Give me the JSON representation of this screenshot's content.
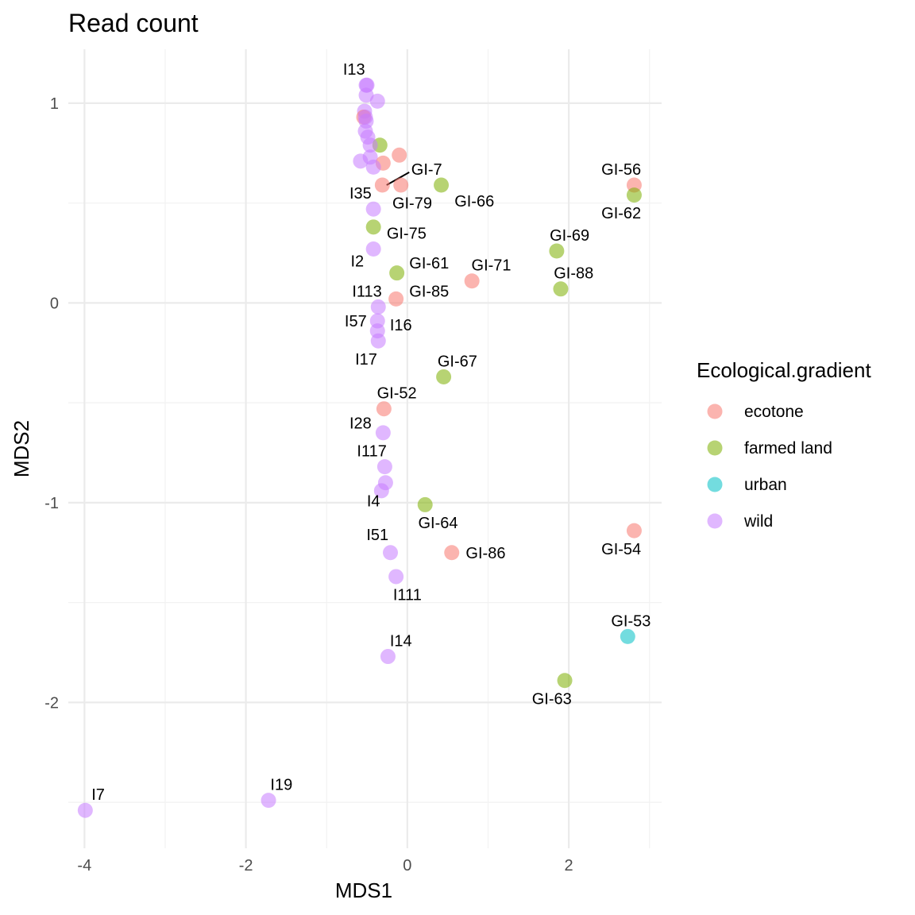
{
  "chart_data": {
    "type": "scatter",
    "title": "Read count",
    "xlabel": "MDS1",
    "ylabel": "MDS2",
    "xlim": [
      -4.2,
      3.15
    ],
    "ylim": [
      -2.73,
      1.27
    ],
    "x_ticks": [
      -4,
      -2,
      0,
      2
    ],
    "x_tick_labels": [
      "-4",
      "-2",
      "0",
      "2"
    ],
    "y_ticks": [
      -2,
      -1,
      0,
      1
    ],
    "y_tick_labels": [
      "-2",
      "-1",
      "0",
      "1"
    ],
    "grid": true,
    "legend": {
      "title": "Ecological.gradient",
      "position": "right",
      "entries": [
        {
          "label": "ecotone",
          "color": "#F8766D"
        },
        {
          "label": "farmed land",
          "color": "#7CAE00"
        },
        {
          "label": "urban",
          "color": "#00BFC4"
        },
        {
          "label": "wild",
          "color": "#C77CFF"
        }
      ]
    },
    "points": [
      {
        "label": "",
        "group": "wild",
        "x": -0.51,
        "y": 1.09
      },
      {
        "label": "",
        "group": "wild",
        "x": -0.51,
        "y": 1.04
      },
      {
        "label": "",
        "group": "wild",
        "x": -0.37,
        "y": 1.01
      },
      {
        "label": "",
        "group": "wild",
        "x": -0.53,
        "y": 0.96
      },
      {
        "label": "",
        "group": "ecotone",
        "x": -0.54,
        "y": 0.93
      },
      {
        "label": "",
        "group": "wild",
        "x": -0.52,
        "y": 0.93
      },
      {
        "label": "",
        "group": "wild",
        "x": -0.51,
        "y": 0.91
      },
      {
        "label": "",
        "group": "wild",
        "x": -0.52,
        "y": 0.86
      },
      {
        "label": "",
        "group": "wild",
        "x": -0.49,
        "y": 0.83
      },
      {
        "label": "",
        "group": "farmed land",
        "x": -0.34,
        "y": 0.79
      },
      {
        "label": "",
        "group": "wild",
        "x": -0.46,
        "y": 0.79
      },
      {
        "label": "",
        "group": "ecotone",
        "x": -0.1,
        "y": 0.74
      },
      {
        "label": "",
        "group": "wild",
        "x": -0.46,
        "y": 0.73
      },
      {
        "label": "",
        "group": "wild",
        "x": -0.58,
        "y": 0.71
      },
      {
        "label": "",
        "group": "ecotone",
        "x": -0.3,
        "y": 0.7
      },
      {
        "label": "",
        "group": "wild",
        "x": -0.42,
        "y": 0.68
      },
      {
        "label": "I13",
        "group": "wild",
        "x": -0.5,
        "y": 1.09,
        "lx": -0.66,
        "ly": 1.17
      },
      {
        "label": "I35",
        "group": "ecotone",
        "x": -0.31,
        "y": 0.59,
        "lx": -0.58,
        "ly": 0.55
      },
      {
        "label": "GI-7",
        "group": "ecotone",
        "x": -0.08,
        "y": 0.59,
        "lx": 0.24,
        "ly": 0.67,
        "leader": true
      },
      {
        "label": "GI-79",
        "group": "wild",
        "x": -0.42,
        "y": 0.47,
        "lx": 0.06,
        "ly": 0.5
      },
      {
        "label": "GI-66",
        "group": "farmed land",
        "x": 0.42,
        "y": 0.59,
        "lx": 0.83,
        "ly": 0.51
      },
      {
        "label": "GI-75",
        "group": "farmed land",
        "x": -0.42,
        "y": 0.38,
        "lx": -0.01,
        "ly": 0.35
      },
      {
        "label": "I2",
        "group": "wild",
        "x": -0.42,
        "y": 0.27,
        "lx": -0.62,
        "ly": 0.21
      },
      {
        "label": "GI-61",
        "group": "farmed land",
        "x": -0.13,
        "y": 0.15,
        "lx": 0.27,
        "ly": 0.2
      },
      {
        "label": "GI-71",
        "group": "ecotone",
        "x": 0.8,
        "y": 0.11,
        "lx": 1.04,
        "ly": 0.19
      },
      {
        "label": "I113",
        "group": "wild",
        "x": -0.36,
        "y": -0.02,
        "lx": -0.5,
        "ly": 0.06
      },
      {
        "label": "GI-85",
        "group": "ecotone",
        "x": -0.14,
        "y": 0.02,
        "lx": 0.27,
        "ly": 0.06
      },
      {
        "label": "I57",
        "group": "wild",
        "x": -0.37,
        "y": -0.09,
        "lx": -0.64,
        "ly": -0.09
      },
      {
        "label": "I16",
        "group": "wild",
        "x": -0.37,
        "y": -0.14,
        "lx": -0.08,
        "ly": -0.11
      },
      {
        "label": "I17",
        "group": "wild",
        "x": -0.36,
        "y": -0.19,
        "lx": -0.51,
        "ly": -0.28
      },
      {
        "label": "GI-67",
        "group": "farmed land",
        "x": 0.45,
        "y": -0.37,
        "lx": 0.62,
        "ly": -0.29
      },
      {
        "label": "GI-52",
        "group": "ecotone",
        "x": -0.29,
        "y": -0.53,
        "lx": -0.13,
        "ly": -0.45
      },
      {
        "label": "I28",
        "group": "wild",
        "x": -0.3,
        "y": -0.65,
        "lx": -0.58,
        "ly": -0.6
      },
      {
        "label": "I117",
        "group": "wild",
        "x": -0.28,
        "y": -0.82,
        "lx": -0.44,
        "ly": -0.74
      },
      {
        "label": "",
        "group": "wild",
        "x": -0.27,
        "y": -0.9
      },
      {
        "label": "I4",
        "group": "wild",
        "x": -0.32,
        "y": -0.94,
        "lx": -0.42,
        "ly": -0.99
      },
      {
        "label": "GI-64",
        "group": "farmed land",
        "x": 0.22,
        "y": -1.01,
        "lx": 0.38,
        "ly": -1.1
      },
      {
        "label": "GI-54",
        "group": "ecotone",
        "x": 2.81,
        "y": -1.14,
        "lx": 2.65,
        "ly": -1.23
      },
      {
        "label": "I51",
        "group": "wild",
        "x": -0.21,
        "y": -1.25,
        "lx": -0.37,
        "ly": -1.16
      },
      {
        "label": "GI-86",
        "group": "ecotone",
        "x": 0.55,
        "y": -1.25,
        "lx": 0.97,
        "ly": -1.25
      },
      {
        "label": "I111",
        "group": "wild",
        "x": -0.14,
        "y": -1.37,
        "lx": 0.0,
        "ly": -1.46
      },
      {
        "label": "GI-53",
        "group": "urban",
        "x": 2.73,
        "y": -1.67,
        "lx": 2.77,
        "ly": -1.59
      },
      {
        "label": "I14",
        "group": "wild",
        "x": -0.24,
        "y": -1.77,
        "lx": -0.08,
        "ly": -1.69
      },
      {
        "label": "GI-63",
        "group": "farmed land",
        "x": 1.95,
        "y": -1.89,
        "lx": 1.79,
        "ly": -1.98
      },
      {
        "label": "GI-56",
        "group": "ecotone",
        "x": 2.81,
        "y": 0.59,
        "lx": 2.65,
        "ly": 0.67
      },
      {
        "label": "GI-62",
        "group": "farmed land",
        "x": 2.81,
        "y": 0.54,
        "lx": 2.65,
        "ly": 0.45
      },
      {
        "label": "GI-69",
        "group": "farmed land",
        "x": 1.85,
        "y": 0.26,
        "lx": 2.01,
        "ly": 0.34
      },
      {
        "label": "GI-88",
        "group": "farmed land",
        "x": 1.9,
        "y": 0.07,
        "lx": 2.06,
        "ly": 0.15
      },
      {
        "label": "I7",
        "group": "wild",
        "x": -3.99,
        "y": -2.54,
        "lx": -3.83,
        "ly": -2.46
      },
      {
        "label": "I19",
        "group": "wild",
        "x": -1.72,
        "y": -2.49,
        "lx": -1.56,
        "ly": -2.41
      }
    ]
  }
}
